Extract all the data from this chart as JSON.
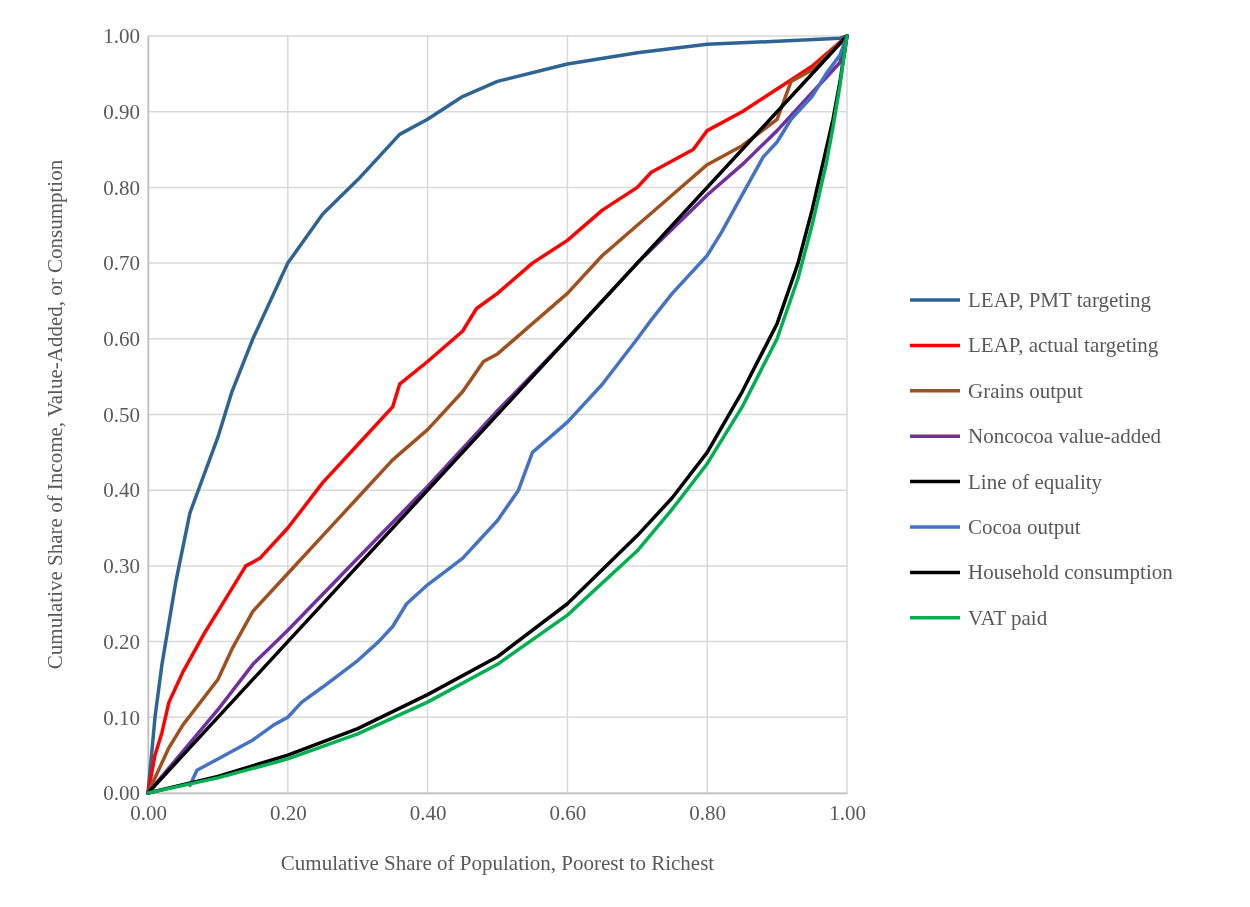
{
  "chart_data": {
    "type": "line",
    "xlabel": "Cumulative Share of Population, Poorest to Richest",
    "ylabel": "Cumulative Share of Income, Value-Added, or Consumption",
    "xlim": [
      0,
      1
    ],
    "ylim": [
      0,
      1
    ],
    "xticks": [
      {
        "value": 0,
        "label": "0.00"
      },
      {
        "value": 0.2,
        "label": "0.20"
      },
      {
        "value": 0.4,
        "label": "0.40"
      },
      {
        "value": 0.6,
        "label": "0.60"
      },
      {
        "value": 0.8,
        "label": "0.80"
      },
      {
        "value": 1,
        "label": "1.00"
      }
    ],
    "yticks": [
      {
        "value": 0,
        "label": "0.00"
      },
      {
        "value": 0.1,
        "label": "0.10"
      },
      {
        "value": 0.2,
        "label": "0.20"
      },
      {
        "value": 0.3,
        "label": "0.30"
      },
      {
        "value": 0.4,
        "label": "0.40"
      },
      {
        "value": 0.5,
        "label": "0.50"
      },
      {
        "value": 0.6,
        "label": "0.60"
      },
      {
        "value": 0.7,
        "label": "0.70"
      },
      {
        "value": 0.8,
        "label": "0.80"
      },
      {
        "value": 0.9,
        "label": "0.90"
      },
      {
        "value": 1,
        "label": "1.00"
      }
    ],
    "grid": true,
    "legend": "right",
    "marker": "none",
    "line_style": "solid",
    "series": [
      {
        "name": "LEAP, PMT targeting",
        "color": "#2e6494",
        "x": [
          0,
          0.01,
          0.02,
          0.04,
          0.06,
          0.1,
          0.12,
          0.15,
          0.2,
          0.25,
          0.3,
          0.36,
          0.4,
          0.45,
          0.5,
          0.6,
          0.7,
          0.8,
          0.9,
          0.99,
          1
        ],
        "values": [
          0,
          0.1,
          0.17,
          0.28,
          0.37,
          0.47,
          0.53,
          0.6,
          0.7,
          0.765,
          0.81,
          0.87,
          0.89,
          0.92,
          0.94,
          0.963,
          0.978,
          0.989,
          0.993,
          0.997,
          1
        ]
      },
      {
        "name": "LEAP, actual targeting",
        "color": "#ff0000",
        "x": [
          0,
          0.01,
          0.02,
          0.03,
          0.05,
          0.08,
          0.1,
          0.12,
          0.14,
          0.16,
          0.2,
          0.25,
          0.3,
          0.35,
          0.36,
          0.4,
          0.45,
          0.47,
          0.5,
          0.55,
          0.6,
          0.65,
          0.7,
          0.72,
          0.78,
          0.8,
          0.85,
          0.9,
          0.95,
          1
        ],
        "values": [
          0,
          0.05,
          0.08,
          0.12,
          0.16,
          0.21,
          0.24,
          0.27,
          0.3,
          0.31,
          0.35,
          0.41,
          0.46,
          0.51,
          0.54,
          0.57,
          0.61,
          0.64,
          0.66,
          0.7,
          0.73,
          0.77,
          0.8,
          0.82,
          0.85,
          0.875,
          0.9,
          0.93,
          0.96,
          1
        ]
      },
      {
        "name": "Grains output",
        "color": "#a0501e",
        "x": [
          0,
          0.03,
          0.05,
          0.1,
          0.12,
          0.15,
          0.2,
          0.25,
          0.3,
          0.35,
          0.4,
          0.45,
          0.48,
          0.5,
          0.55,
          0.6,
          0.65,
          0.7,
          0.75,
          0.8,
          0.85,
          0.9,
          0.92,
          0.95,
          1
        ],
        "values": [
          0,
          0.06,
          0.09,
          0.15,
          0.19,
          0.24,
          0.29,
          0.34,
          0.39,
          0.44,
          0.48,
          0.53,
          0.57,
          0.58,
          0.62,
          0.66,
          0.71,
          0.75,
          0.79,
          0.83,
          0.855,
          0.89,
          0.94,
          0.955,
          1
        ]
      },
      {
        "name": "Noncocoa value-added",
        "color": "#7030a0",
        "x": [
          0,
          0.1,
          0.15,
          0.2,
          0.3,
          0.4,
          0.5,
          0.6,
          0.7,
          0.8,
          0.85,
          0.9,
          0.95,
          0.99,
          1
        ],
        "values": [
          0,
          0.11,
          0.17,
          0.215,
          0.31,
          0.405,
          0.505,
          0.6,
          0.7,
          0.79,
          0.83,
          0.875,
          0.925,
          0.965,
          1
        ]
      },
      {
        "name": "Line of equality",
        "color": "#000000",
        "x": [
          0,
          1
        ],
        "values": [
          0,
          1
        ]
      },
      {
        "name": "Cocoa output",
        "color": "#4472c4",
        "x": [
          0.06,
          0.07,
          0.1,
          0.15,
          0.18,
          0.2,
          0.22,
          0.25,
          0.3,
          0.33,
          0.35,
          0.37,
          0.4,
          0.45,
          0.5,
          0.53,
          0.55,
          0.6,
          0.65,
          0.7,
          0.72,
          0.75,
          0.8,
          0.82,
          0.85,
          0.88,
          0.9,
          0.92,
          0.95,
          0.97,
          0.99,
          1
        ],
        "values": [
          0.01,
          0.03,
          0.045,
          0.07,
          0.09,
          0.1,
          0.12,
          0.14,
          0.175,
          0.2,
          0.22,
          0.25,
          0.275,
          0.31,
          0.36,
          0.4,
          0.45,
          0.49,
          0.54,
          0.6,
          0.625,
          0.66,
          0.71,
          0.74,
          0.79,
          0.84,
          0.86,
          0.89,
          0.92,
          0.95,
          0.975,
          1
        ]
      },
      {
        "name": "Household consumption",
        "color": "#000000",
        "x": [
          0,
          0.1,
          0.2,
          0.3,
          0.4,
          0.5,
          0.6,
          0.7,
          0.75,
          0.8,
          0.85,
          0.9,
          0.93,
          0.95,
          0.97,
          0.98,
          0.99,
          1
        ],
        "values": [
          0,
          0.022,
          0.05,
          0.085,
          0.13,
          0.18,
          0.25,
          0.34,
          0.39,
          0.45,
          0.53,
          0.62,
          0.7,
          0.77,
          0.85,
          0.89,
          0.94,
          1
        ]
      },
      {
        "name": "VAT paid",
        "color": "#00b050",
        "x": [
          0,
          0.1,
          0.2,
          0.3,
          0.4,
          0.5,
          0.6,
          0.7,
          0.75,
          0.8,
          0.85,
          0.9,
          0.93,
          0.95,
          0.97,
          0.98,
          0.99,
          0.995,
          1
        ],
        "values": [
          0,
          0.02,
          0.045,
          0.078,
          0.12,
          0.17,
          0.235,
          0.32,
          0.375,
          0.435,
          0.51,
          0.6,
          0.68,
          0.75,
          0.83,
          0.88,
          0.935,
          0.97,
          1
        ]
      }
    ]
  }
}
